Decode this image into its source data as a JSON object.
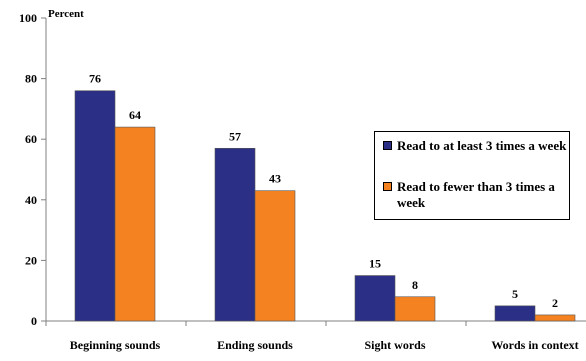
{
  "chart_data": {
    "type": "bar",
    "ylabel": "Percent",
    "ylim": [
      0,
      100
    ],
    "yticks": [
      0,
      20,
      40,
      60,
      80,
      100
    ],
    "categories": [
      "Beginning sounds",
      "Ending sounds",
      "Sight words",
      "Words in context"
    ],
    "series": [
      {
        "name": "Read to at least 3 times a week",
        "color": "#2b2f86",
        "values": [
          76,
          57,
          15,
          5
        ]
      },
      {
        "name": "Read to fewer than 3 times a week",
        "color": "#f58220",
        "values": [
          64,
          43,
          8,
          2
        ]
      }
    ],
    "grid": false,
    "legend_position": "right"
  }
}
